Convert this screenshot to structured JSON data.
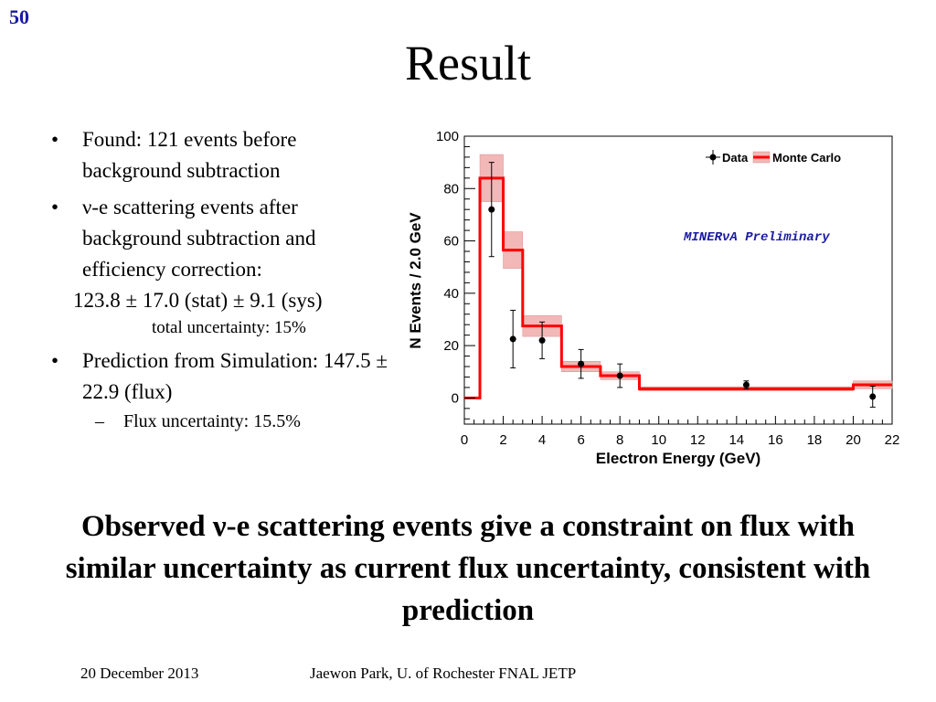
{
  "slide_number": "50",
  "title": "Result",
  "bullets": {
    "b1": "Found:  121 events before background subtraction",
    "b2": " ν-e scattering events after background subtraction and efficiency correction:",
    "result_value": "123.8 ± 17.0 (stat) ± 9.1 (sys)",
    "total_uncertainty": "total uncertainty: 15%",
    "b3": "Prediction from Simulation: 147.5 ± 22.9 (flux)",
    "sub1": "Flux uncertainty: 15.5%"
  },
  "conclusion": "Observed ν-e scattering events give a constraint on flux with similar uncertainty as current flux uncertainty, consistent with prediction",
  "footer": {
    "date": "20 December 2013",
    "author": "Jaewon Park, U. of Rochester  FNAL JETP"
  },
  "colors": {
    "slide_number": "#1a1aa6",
    "mc_line": "#ff0000",
    "mc_band": "#f2b8b8",
    "annotation": "#1a1aa6"
  },
  "chart_data": {
    "type": "histogram",
    "ylabel": "N Events / 2.0 GeV",
    "xlabel": "Electron Energy (GeV)",
    "xlim": [
      0,
      22
    ],
    "ylim": [
      -10,
      100
    ],
    "xticks": [
      "0",
      "2",
      "4",
      "6",
      "8",
      "10",
      "12",
      "14",
      "16",
      "18",
      "20",
      "22"
    ],
    "yticks": [
      "0",
      "20",
      "40",
      "60",
      "80",
      "100"
    ],
    "annotation": "MINERνA Preliminary",
    "legend": {
      "position": "top-right",
      "data_label": "Data",
      "mc_label": "Monte Carlo"
    },
    "series": [
      {
        "name": "Monte Carlo",
        "bins": [
          {
            "x0": 0,
            "x1": 0.8,
            "y": 0,
            "err": 0
          },
          {
            "x0": 0.8,
            "x1": 2,
            "y": 84,
            "err": 9
          },
          {
            "x0": 2,
            "x1": 3,
            "y": 56.5,
            "err": 7
          },
          {
            "x0": 3,
            "x1": 5,
            "y": 27.5,
            "err": 4
          },
          {
            "x0": 5,
            "x1": 7,
            "y": 12,
            "err": 2
          },
          {
            "x0": 7,
            "x1": 9,
            "y": 8.5,
            "err": 1.5
          },
          {
            "x0": 9,
            "x1": 20,
            "y": 3.5,
            "err": 0.8
          },
          {
            "x0": 20,
            "x1": 22,
            "y": 5,
            "err": 1.5
          }
        ]
      },
      {
        "name": "Data",
        "points": [
          {
            "x": 1.4,
            "y": 72,
            "err": 18
          },
          {
            "x": 2.5,
            "y": 22.5,
            "err": 11
          },
          {
            "x": 4,
            "y": 22,
            "err": 7
          },
          {
            "x": 6,
            "y": 13,
            "err": 5.5
          },
          {
            "x": 8,
            "y": 8.5,
            "err": 4.5
          },
          {
            "x": 14.5,
            "y": 5,
            "err": 1.5
          },
          {
            "x": 21,
            "y": 0.5,
            "err": 4
          }
        ]
      }
    ]
  }
}
